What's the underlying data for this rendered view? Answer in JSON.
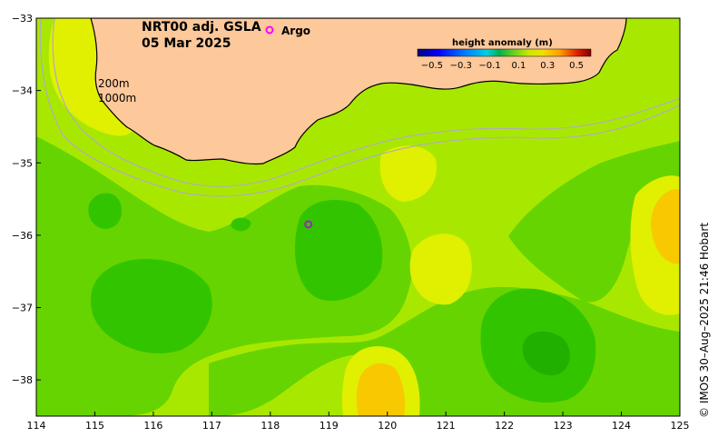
{
  "title": {
    "line1": "NRT00 adj. GSLA",
    "line2": "05 Mar 2025"
  },
  "argo_label": "Argo",
  "colorbar": {
    "title": "height anomaly (m)",
    "ticks": [
      -0.5,
      -0.3,
      -0.1,
      0.1,
      0.3,
      0.5
    ],
    "tick_labels": [
      "−0.5",
      "−0.3",
      "−0.1",
      "0.1",
      "0.3",
      "0.5"
    ],
    "colors": [
      "#00007f",
      "#0000ff",
      "#0080ff",
      "#00e0ff",
      "#00c060",
      "#40d020",
      "#a0e800",
      "#e8f000",
      "#ffc800",
      "#ff6000",
      "#e00000",
      "#800000"
    ]
  },
  "contour_labels": {
    "c200": "200m",
    "c1000": "1000m"
  },
  "credit": "© IMOS 30–Aug–2025 21:46 Hobart",
  "axes": {
    "xlim": [
      114,
      125
    ],
    "ylim": [
      -38.5,
      -33
    ],
    "x_ticks": [
      114,
      115,
      116,
      117,
      118,
      119,
      120,
      121,
      122,
      123,
      124,
      125
    ],
    "y_ticks": [
      -33,
      -34,
      -35,
      -36,
      -37,
      -38
    ],
    "y_tick_labels": [
      "−33",
      "−34",
      "−35",
      "−36",
      "−37",
      "−38"
    ]
  },
  "colors": {
    "land": "#fdc89a",
    "coast": "#000000",
    "isobath": "#b0b0b0",
    "argo": "#ff00ff",
    "bg_field": "#a8e800"
  },
  "argo_floats": [
    {
      "lon": 118.65,
      "lat": -35.85
    }
  ]
}
